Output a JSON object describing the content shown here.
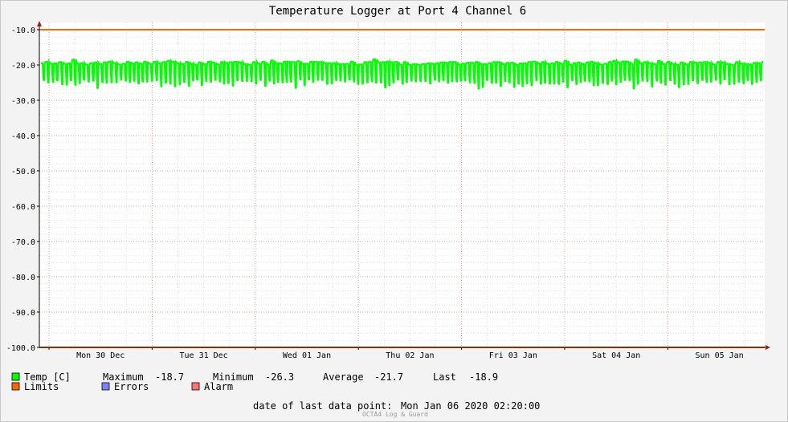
{
  "chart_data": {
    "type": "line",
    "title": "Temperature Logger at Port 4 Channel 6",
    "xlabel": "",
    "ylabel": "",
    "ylim": [
      -100,
      -10
    ],
    "y_ticks": [
      "-10.0",
      "-20.0",
      "-30.0",
      "-40.0",
      "-50.0",
      "-60.0",
      "-70.0",
      "-80.0",
      "-90.0",
      "-100.0"
    ],
    "x_ticks": [
      "Mon 30 Dec",
      "Tue 31 Dec",
      "Wed 01 Jan",
      "Thu 02 Jan",
      "Fri 03 Jan",
      "Sat 04 Jan",
      "Sun 05 Jan"
    ],
    "grid": true,
    "series": [
      {
        "name": "Temp [C]",
        "color": "#00ff00",
        "pattern": "oscillating",
        "max": -18.7,
        "min": -26.3,
        "average": -21.7,
        "last": -18.9,
        "typical_high": -19.5,
        "typical_low": -24.8
      },
      {
        "name": "Limits",
        "color": "#ff6600",
        "values": [
          -10.0,
          -100.0
        ]
      }
    ],
    "legend_placement": "bottom-left"
  },
  "legend": {
    "temp_label": "Temp [C]",
    "maximum_label": "Maximum",
    "maximum_value": "-18.7",
    "minimum_label": "Minimum",
    "minimum_value": "-26.3",
    "average_label": "Average",
    "average_value": "-21.7",
    "last_label": "Last",
    "last_value": "-18.9",
    "limits_label": "Limits",
    "errors_label": "Errors",
    "alarm_label": "Alarm"
  },
  "colors": {
    "temp": "#00ff00",
    "limits": "#ff6600",
    "errors": "#7d80ff",
    "alarm": "#ff7070"
  },
  "footer": {
    "last_point_label": "date of last data point:",
    "last_point_value": "Mon Jan 06 2020 02:20:00",
    "brand": "OCTA4 Log & Guard"
  }
}
